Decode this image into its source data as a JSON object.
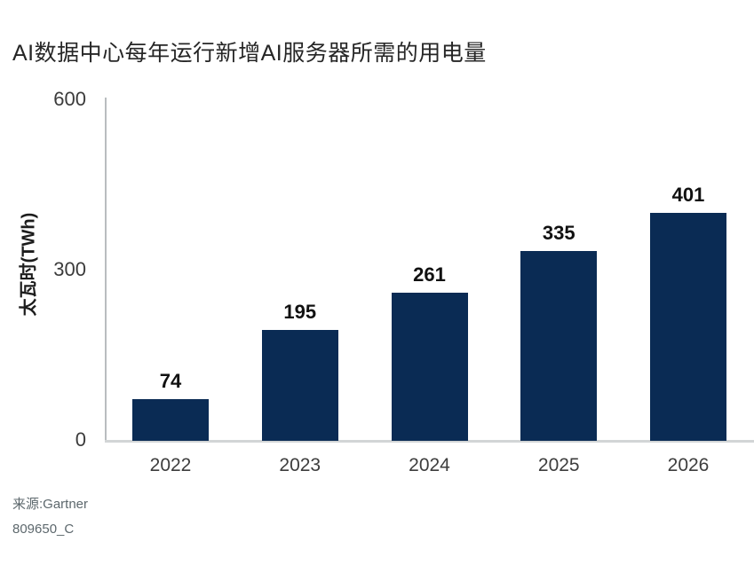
{
  "chart_data": {
    "type": "bar",
    "title": "AI数据中心每年运行新增AI服务器所需的用电量",
    "ylabel": "太瓦时(TWh)",
    "xlabel": "",
    "categories": [
      "2022",
      "2023",
      "2024",
      "2025",
      "2026"
    ],
    "values": [
      74,
      195,
      261,
      335,
      401
    ],
    "yticks": [
      0,
      300,
      600
    ],
    "ylim": [
      0,
      600
    ],
    "grid": false,
    "data_labels": true,
    "legend": "none",
    "bar_color": "#0a2b54",
    "axis_color": "#b9bdbf"
  },
  "footer": {
    "source": "来源:Gartner",
    "doc_id": "809650_C"
  }
}
